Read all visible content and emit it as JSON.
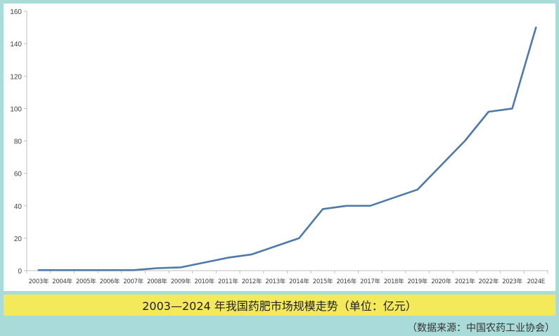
{
  "chart_data": {
    "type": "line",
    "title": "2003—2024 年我国药肥市场规模走势（单位：亿元）",
    "x": [
      "2003年",
      "2004年",
      "2005年",
      "2006年",
      "2007年",
      "2008年",
      "2009年",
      "2010年",
      "2011年",
      "2012年",
      "2013年",
      "2014年",
      "2015年",
      "2016年",
      "2017年",
      "2018年",
      "2019年",
      "2020年",
      "2021年",
      "2022年",
      "2023年",
      "2024E"
    ],
    "series": [
      {
        "values": [
          0.3,
          0.3,
          0.3,
          0.3,
          0.3,
          1.5,
          2,
          5,
          8,
          10,
          15,
          20,
          38,
          40,
          40,
          45,
          50,
          65,
          80,
          98,
          100,
          150
        ]
      }
    ],
    "ylim": [
      0,
      160
    ],
    "yticks": [
      0,
      20,
      40,
      60,
      80,
      100,
      120,
      140,
      160
    ],
    "grid": false,
    "line_color": "#4f79a8",
    "xlabel": "",
    "ylabel": ""
  },
  "source": "（数据来源：中国农药工业协会）"
}
